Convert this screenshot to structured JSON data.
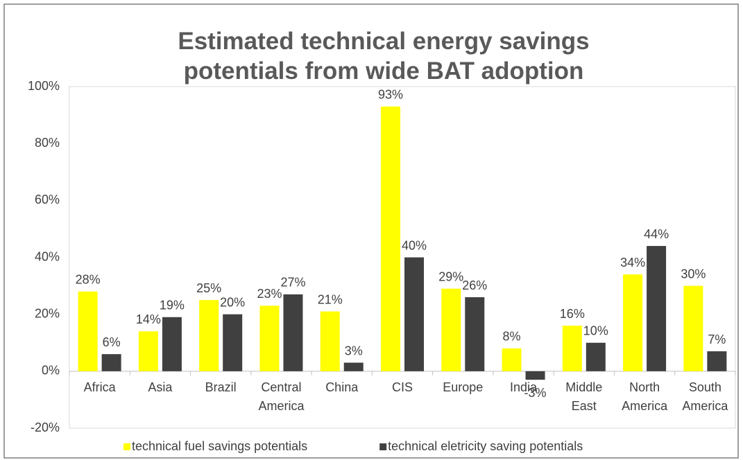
{
  "chart_data": {
    "type": "bar",
    "title": "Estimated technical energy savings potentials from wide BAT adoption",
    "categories": [
      "Africa",
      "Asia",
      "Brazil",
      "Central America",
      "China",
      "CIS",
      "Europe",
      "India",
      "Middle East",
      "North America",
      "South America"
    ],
    "series": [
      {
        "name": "technical fuel savings potentials",
        "color": "#ffff00",
        "values": [
          28,
          14,
          25,
          23,
          21,
          93,
          29,
          8,
          16,
          34,
          30
        ],
        "value_labels": [
          "28%",
          "14%",
          "25%",
          "23%",
          "21%",
          "93%",
          "29%",
          "8%",
          "16%",
          "34%",
          "30%"
        ]
      },
      {
        "name": "technical eletricity saving potentials",
        "color": "#404040",
        "values": [
          6,
          19,
          20,
          27,
          3,
          40,
          26,
          -3,
          10,
          44,
          7
        ],
        "value_labels": [
          "6%",
          "19%",
          "20%",
          "27%",
          "3%",
          "40%",
          "26%",
          "-3%",
          "10%",
          "44%",
          "7%"
        ]
      }
    ],
    "ylim": [
      -20,
      100
    ],
    "yticks": [
      {
        "value": -20,
        "label": "-20%"
      },
      {
        "value": 0,
        "label": "0%"
      },
      {
        "value": 20,
        "label": "20%"
      },
      {
        "value": 40,
        "label": "40%"
      },
      {
        "value": 60,
        "label": "60%"
      },
      {
        "value": 80,
        "label": "80%"
      },
      {
        "value": 100,
        "label": "100%"
      }
    ],
    "grid": false,
    "legend": "bottom"
  }
}
